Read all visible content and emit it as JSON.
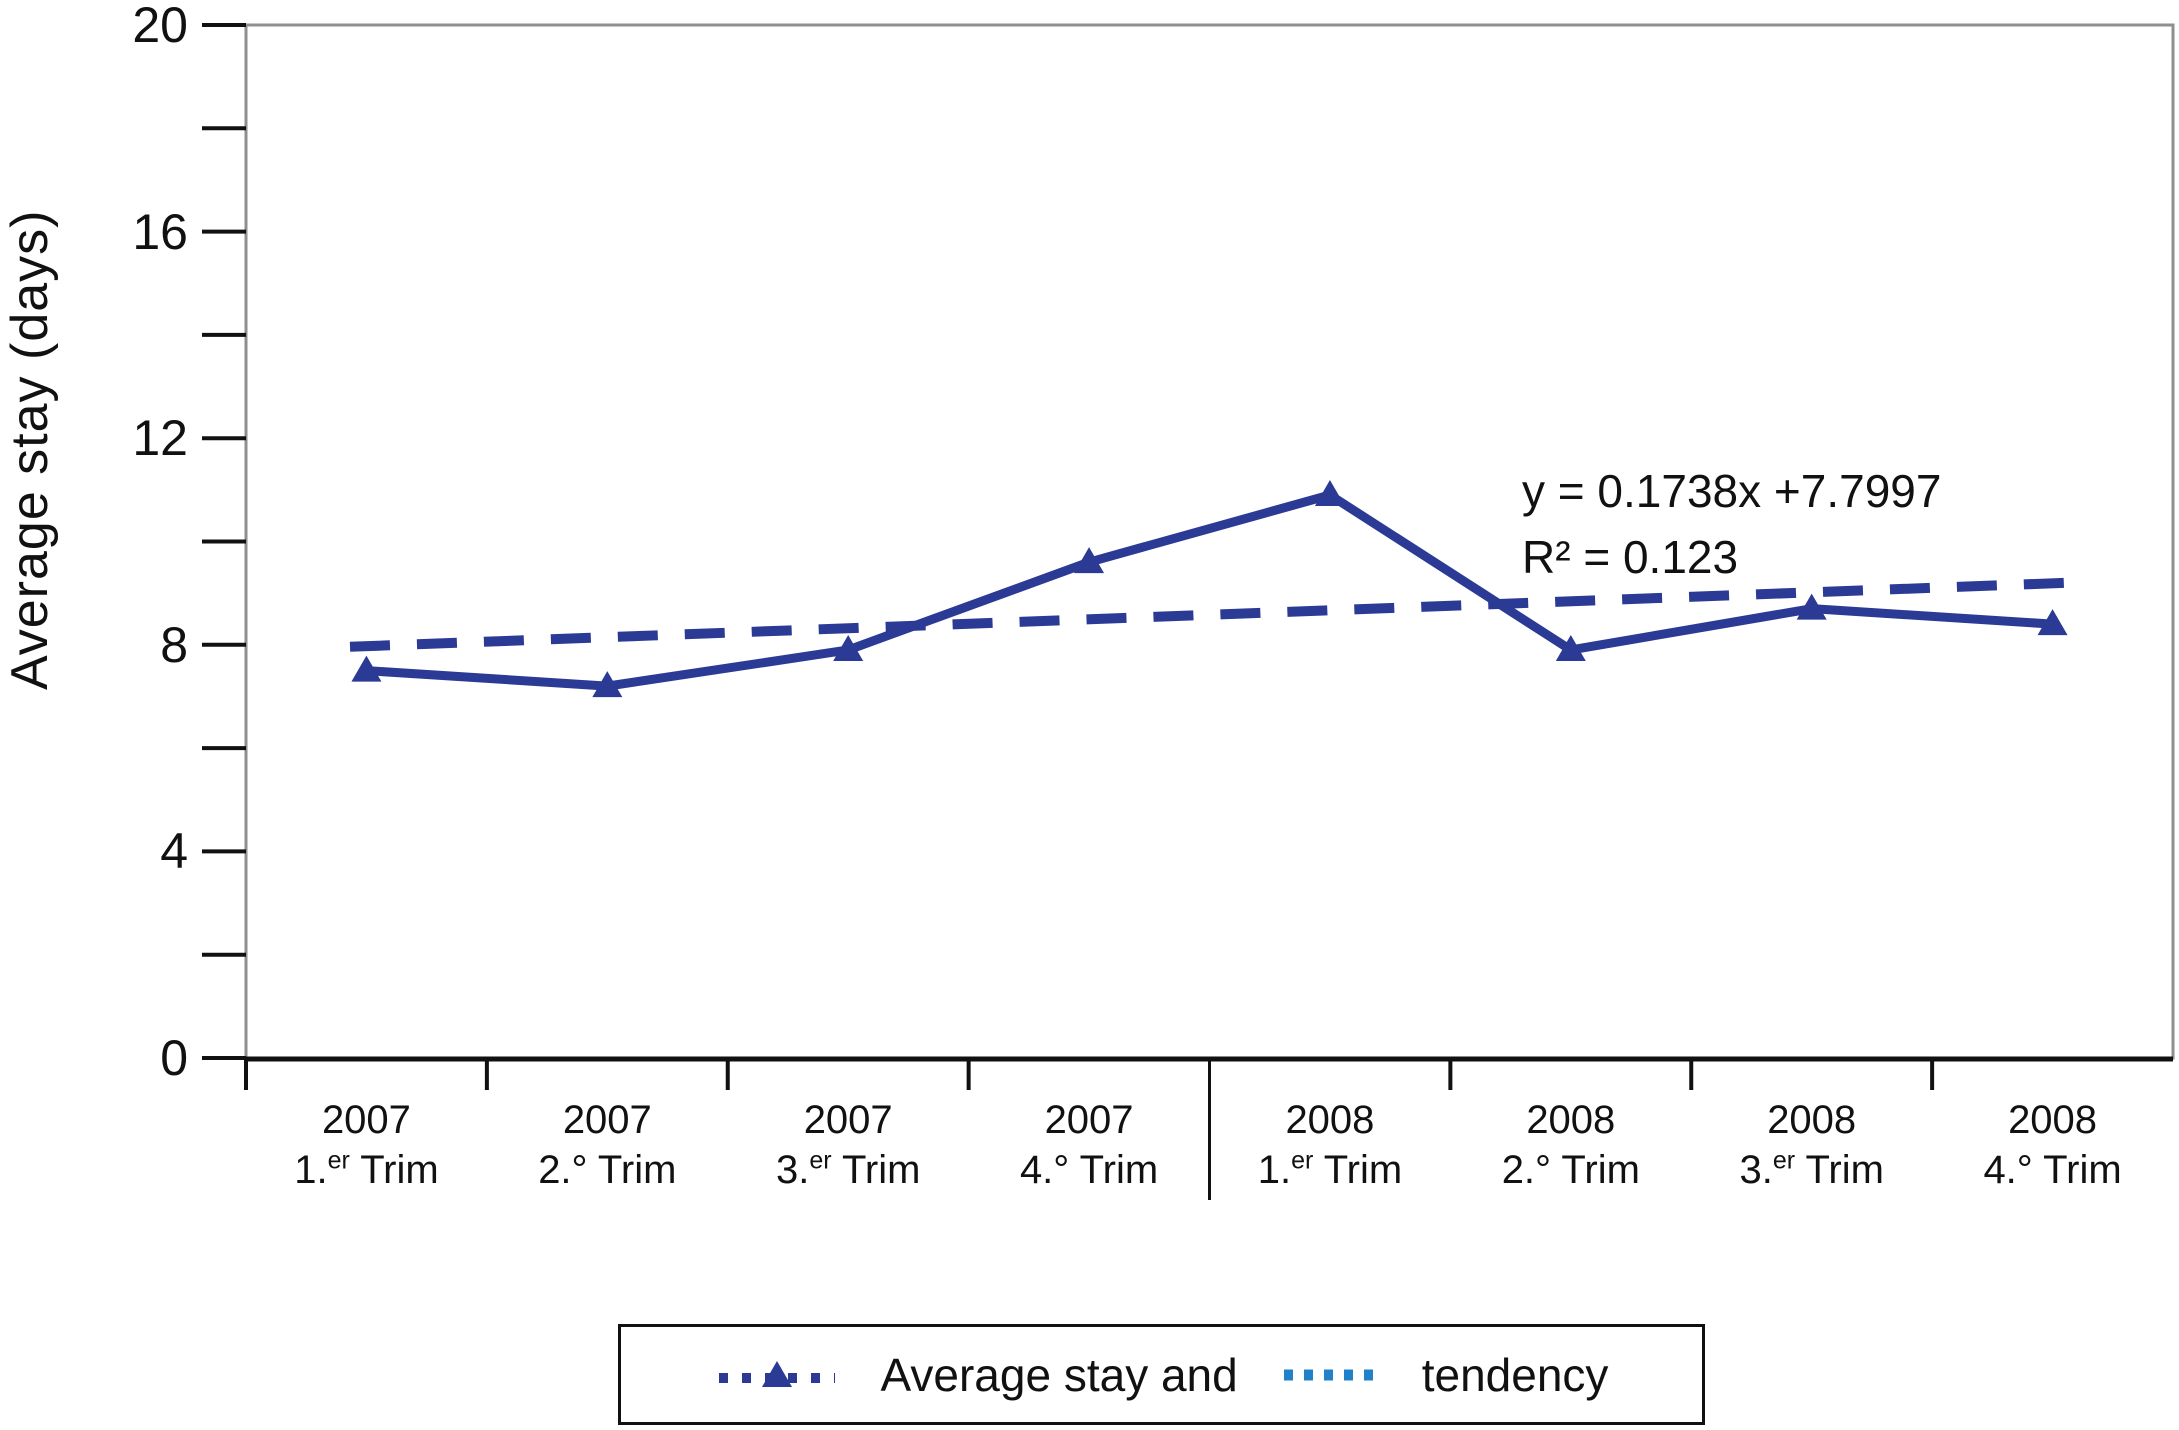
{
  "chart_data": {
    "type": "line",
    "title": "",
    "ylabel": "Average stay (days)",
    "xlabel": "",
    "ylim": [
      0,
      20
    ],
    "y_major_ticks": [
      0,
      4,
      8,
      12,
      16,
      20
    ],
    "y_minor_ticks": [
      2,
      6,
      10,
      14,
      18
    ],
    "grid": "off",
    "categories": [
      {
        "year": "2007",
        "q_num": "1.",
        "q_sup": "er",
        "q_rest": " Trim"
      },
      {
        "year": "2007",
        "q_num": "2.",
        "q_sup": "",
        "q_rest": "° Trim"
      },
      {
        "year": "2007",
        "q_num": "3.",
        "q_sup": "er",
        "q_rest": " Trim"
      },
      {
        "year": "2007",
        "q_num": "4.",
        "q_sup": "",
        "q_rest": "° Trim"
      },
      {
        "year": "2008",
        "q_num": "1.",
        "q_sup": "er",
        "q_rest": " Trim"
      },
      {
        "year": "2008",
        "q_num": "2.",
        "q_sup": "",
        "q_rest": "° Trim"
      },
      {
        "year": "2008",
        "q_num": "3.",
        "q_sup": "er",
        "q_rest": " Trim"
      },
      {
        "year": "2008",
        "q_num": "4.",
        "q_sup": "",
        "q_rest": "° Trim"
      }
    ],
    "year_divider_after_category": 4,
    "series": [
      {
        "name": "Average stay",
        "style": "solid",
        "marker": "triangle",
        "color": "#2b3a94",
        "values": [
          7.5,
          7.2,
          7.9,
          9.6,
          10.9,
          7.9,
          8.7,
          8.4
        ]
      },
      {
        "name": "tendency",
        "style": "dashed",
        "marker": "none",
        "color": "#2b3a94",
        "trend": {
          "slope": 0.1738,
          "intercept": 7.7997
        },
        "values": [
          7.97,
          8.15,
          8.32,
          8.49,
          8.67,
          8.84,
          9.02,
          9.19
        ]
      }
    ],
    "annotation": {
      "line1": "y = 0.1738x +7.7997",
      "line2": "R² = 0.123"
    },
    "legend": {
      "position": "bottom",
      "items": [
        {
          "label": "Average stay and",
          "color": "#2b3a94",
          "swatch": "dotted-line-with-triangle-marker"
        },
        {
          "label": "tendency",
          "color": "#2080c8",
          "swatch": "dotted-line"
        }
      ]
    }
  },
  "colors": {
    "series_line": "#2b3a94",
    "tendency_swatch": "#2080c8",
    "axis_ticks": "#111111",
    "plot_border": "#8f8f8f",
    "background": "#ffffff"
  }
}
